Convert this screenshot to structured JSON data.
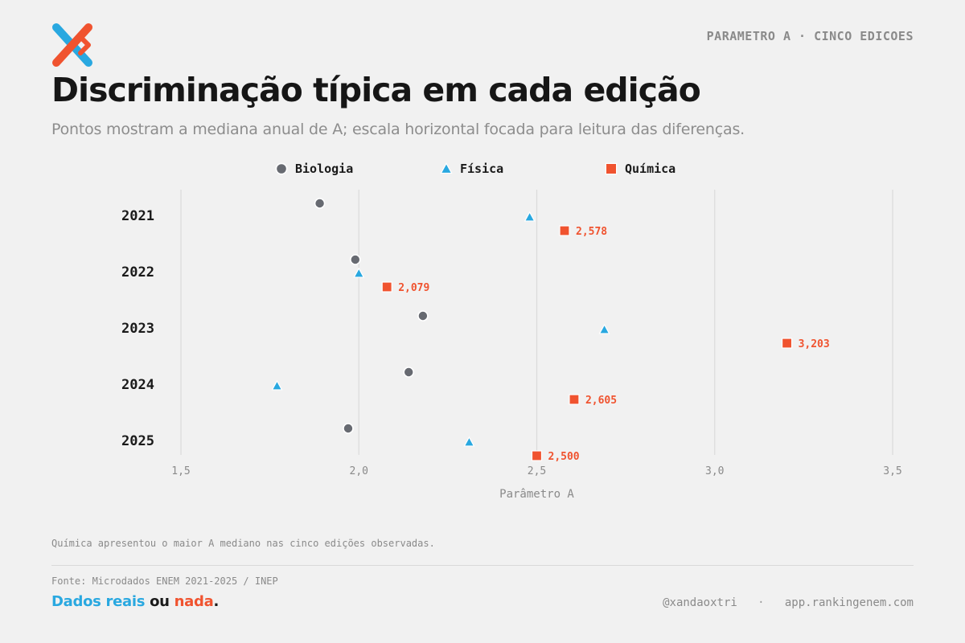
{
  "header": {
    "tag": "PARAMETRO A · CINCO EDICOES",
    "title": "Discriminação típica em cada edição",
    "subtitle": "Pontos mostram a mediana anual de A; escala horizontal focada para leitura das diferenças."
  },
  "colors": {
    "biologia": "#676a71",
    "fisica": "#29a8e0",
    "quimica": "#f0532f",
    "logo_blue": "#29a8e0",
    "logo_orange": "#f0532f"
  },
  "chart_data": {
    "type": "scatter",
    "title": "Discriminação típica em cada edição",
    "xlabel": "Parâmetro A",
    "ylabel": "",
    "xlim": [
      1.5,
      3.5
    ],
    "xticks": [
      "1,5",
      "2,0",
      "2,5",
      "3,0",
      "3,5"
    ],
    "xtick_values": [
      1.5,
      2.0,
      2.5,
      3.0,
      3.5
    ],
    "categories": [
      "2021",
      "2022",
      "2023",
      "2024",
      "2025"
    ],
    "grid": "vertical",
    "legend_position": "top-center",
    "series": [
      {
        "name": "Biologia",
        "marker": "circle",
        "color": "#676a71",
        "values": [
          1.89,
          1.99,
          2.18,
          2.14,
          1.97
        ]
      },
      {
        "name": "Física",
        "marker": "triangle",
        "color": "#29a8e0",
        "values": [
          2.48,
          2.0,
          2.69,
          1.77,
          2.31
        ]
      },
      {
        "name": "Química",
        "marker": "square",
        "color": "#f0532f",
        "values": [
          2.578,
          2.079,
          3.203,
          2.605,
          2.5
        ],
        "labels": [
          "2,578",
          "2,079",
          "3,203",
          "2,605",
          "2,500"
        ]
      }
    ]
  },
  "footer": {
    "note": "Química apresentou o maior A mediano nas cinco edições observadas.",
    "source": "Fonte: Microdados ENEM 2021-2025 / INEP",
    "brand_part1": "Dados reais",
    "brand_part2": "ou",
    "brand_part3": "nada",
    "brand_part4": ".",
    "handle": "@xandaoxtri",
    "separator": "·",
    "site": "app.rankingenem.com"
  },
  "logo": {
    "icon": "x-logo-icon"
  }
}
